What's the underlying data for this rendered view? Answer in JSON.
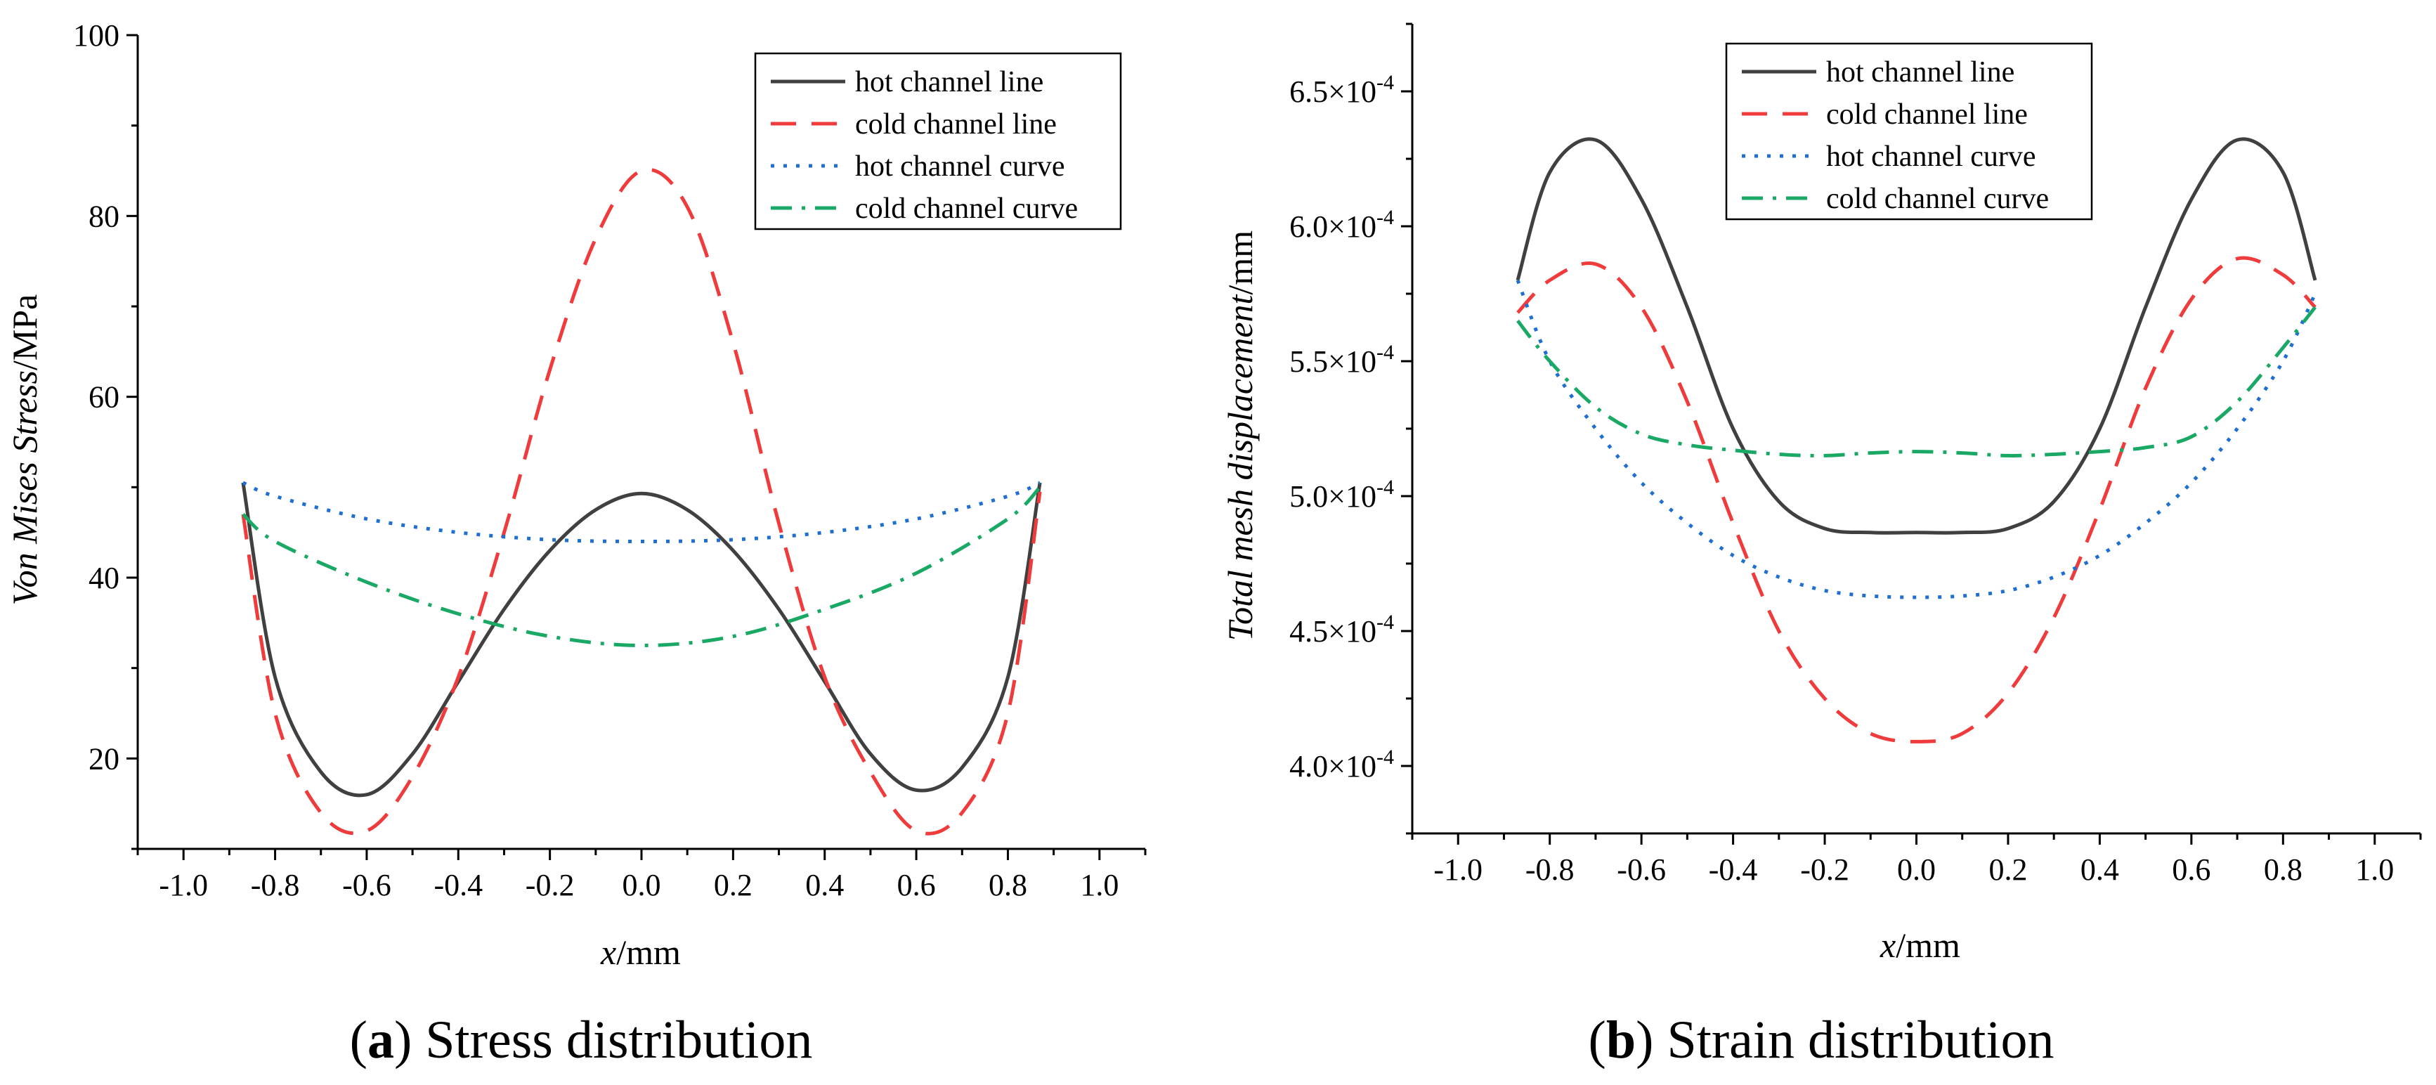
{
  "chart_data": [
    {
      "type": "line",
      "panel": "a",
      "caption_letter": "a",
      "caption_text": " Stress distribution",
      "ylabel_italic": "Von Mises Stress",
      "ylabel_unit": "/MPa",
      "xlabel_italic": "x",
      "xlabel_unit": "/mm",
      "xlim": [
        -1.1,
        1.1
      ],
      "ylim": [
        10,
        100
      ],
      "xticks": [
        -1.0,
        -0.8,
        -0.6,
        -0.4,
        -0.2,
        0.0,
        0.2,
        0.4,
        0.6,
        0.8,
        1.0
      ],
      "xtick_labels": [
        "-1.0",
        "-0.8",
        "-0.6",
        "-0.4",
        "-0.2",
        "0.0",
        "0.2",
        "0.4",
        "0.6",
        "0.8",
        "1.0"
      ],
      "yticks": [
        20,
        40,
        60,
        80,
        100
      ],
      "ytick_labels": [
        "20",
        "40",
        "60",
        "80",
        "100"
      ],
      "legend_position": "top-right",
      "series": [
        {
          "name": "hot channel line",
          "color": "#404040",
          "dash": "solid",
          "x": [
            -0.87,
            -0.8,
            -0.7,
            -0.6,
            -0.5,
            -0.4,
            -0.3,
            -0.2,
            -0.1,
            0.0,
            0.1,
            0.2,
            0.3,
            0.4,
            0.5,
            0.6,
            0.7,
            0.8,
            0.87
          ],
          "y": [
            50.5,
            29.0,
            18.5,
            16.0,
            20.5,
            28.5,
            36.5,
            43.0,
            47.5,
            49.3,
            47.5,
            43.0,
            36.5,
            28.5,
            20.5,
            16.5,
            19.0,
            29.0,
            50.5
          ]
        },
        {
          "name": "cold channel line",
          "color": "#ef3b3b",
          "dash": "long-dash",
          "x": [
            -0.87,
            -0.8,
            -0.7,
            -0.6,
            -0.5,
            -0.4,
            -0.3,
            -0.2,
            -0.1,
            0.0,
            0.1,
            0.2,
            0.3,
            0.4,
            0.5,
            0.6,
            0.7,
            0.8,
            0.87
          ],
          "y": [
            47.0,
            25.0,
            14.0,
            12.0,
            18.0,
            29.0,
            45.0,
            63.0,
            77.5,
            85.0,
            81.0,
            66.0,
            46.0,
            29.0,
            18.5,
            12.0,
            14.0,
            25.0,
            49.5
          ]
        },
        {
          "name": "hot channel curve",
          "color": "#1f6fd1",
          "dash": "dotted",
          "x": [
            -0.87,
            -0.8,
            -0.6,
            -0.4,
            -0.2,
            0.0,
            0.2,
            0.4,
            0.6,
            0.8,
            0.87
          ],
          "y": [
            50.5,
            49.0,
            46.5,
            45.0,
            44.2,
            44.0,
            44.2,
            45.0,
            46.5,
            49.0,
            50.5
          ]
        },
        {
          "name": "cold channel curve",
          "color": "#1aa865",
          "dash": "dash-dot",
          "x": [
            -0.87,
            -0.8,
            -0.6,
            -0.4,
            -0.2,
            0.0,
            0.2,
            0.4,
            0.6,
            0.8,
            0.87
          ],
          "y": [
            47.0,
            44.0,
            39.5,
            36.0,
            33.5,
            32.5,
            33.5,
            36.5,
            40.5,
            46.5,
            50.0
          ]
        }
      ]
    },
    {
      "type": "line",
      "panel": "b",
      "caption_letter": "b",
      "caption_text": " Strain distribution",
      "ylabel_italic": "Total mesh displacement",
      "ylabel_unit": "/mm",
      "xlabel_italic": "x",
      "xlabel_unit": "/mm",
      "xlim": [
        -1.1,
        1.1
      ],
      "ylim": [
        0.000375,
        0.000675
      ],
      "xticks": [
        -1.0,
        -0.8,
        -0.6,
        -0.4,
        -0.2,
        0.0,
        0.2,
        0.4,
        0.6,
        0.8,
        1.0
      ],
      "xtick_labels": [
        "-1.0",
        "-0.8",
        "-0.6",
        "-0.4",
        "-0.2",
        "0.0",
        "0.2",
        "0.4",
        "0.6",
        "0.8",
        "1.0"
      ],
      "yticks": [
        0.0004,
        0.00045,
        0.0005,
        0.00055,
        0.0006,
        0.00065
      ],
      "ytick_labels": [
        [
          "4.0×10",
          "-4"
        ],
        [
          "4.5×10",
          "-4"
        ],
        [
          "5.0×10",
          "-4"
        ],
        [
          "5.5×10",
          "-4"
        ],
        [
          "6.0×10",
          "-4"
        ],
        [
          "6.5×10",
          "-4"
        ]
      ],
      "legend_position": "top-left",
      "series": [
        {
          "name": "hot channel line",
          "color": "#404040",
          "dash": "solid",
          "x": [
            -0.87,
            -0.8,
            -0.7,
            -0.6,
            -0.5,
            -0.4,
            -0.3,
            -0.2,
            -0.1,
            0.0,
            0.1,
            0.2,
            0.3,
            0.4,
            0.5,
            0.6,
            0.7,
            0.8,
            0.87
          ],
          "y": [
            0.00058,
            0.00062,
            0.000632,
            0.00061,
            0.00057,
            0.000525,
            0.000498,
            0.000488,
            0.0004865,
            0.0004865,
            0.0004865,
            0.000488,
            0.000498,
            0.000525,
            0.00057,
            0.00061,
            0.000632,
            0.00062,
            0.00058
          ]
        },
        {
          "name": "cold channel line",
          "color": "#ef3b3b",
          "dash": "long-dash",
          "x": [
            -0.87,
            -0.8,
            -0.7,
            -0.6,
            -0.5,
            -0.4,
            -0.3,
            -0.2,
            -0.1,
            0.0,
            0.1,
            0.2,
            0.3,
            0.4,
            0.5,
            0.6,
            0.7,
            0.8,
            0.87
          ],
          "y": [
            0.000568,
            0.00058,
            0.000586,
            0.00057,
            0.000535,
            0.00049,
            0.00045,
            0.000425,
            0.000412,
            0.000409,
            0.000412,
            0.000427,
            0.000455,
            0.000495,
            0.00054,
            0.000573,
            0.000588,
            0.000582,
            0.00057
          ]
        },
        {
          "name": "hot channel curve",
          "color": "#1f6fd1",
          "dash": "dotted",
          "x": [
            -0.87,
            -0.8,
            -0.7,
            -0.6,
            -0.5,
            -0.4,
            -0.3,
            -0.2,
            -0.1,
            0.0,
            0.1,
            0.2,
            0.3,
            0.4,
            0.5,
            0.6,
            0.7,
            0.8,
            0.87
          ],
          "y": [
            0.00058,
            0.00055,
            0.000525,
            0.000505,
            0.00049,
            0.000478,
            0.00047,
            0.000465,
            0.000463,
            0.0004625,
            0.000463,
            0.000465,
            0.00047,
            0.000478,
            0.00049,
            0.000505,
            0.000525,
            0.00055,
            0.000575
          ]
        },
        {
          "name": "cold channel curve",
          "color": "#1aa865",
          "dash": "dash-dot",
          "x": [
            -0.87,
            -0.8,
            -0.7,
            -0.6,
            -0.5,
            -0.4,
            -0.3,
            -0.2,
            -0.1,
            0.0,
            0.1,
            0.2,
            0.3,
            0.4,
            0.5,
            0.6,
            0.7,
            0.8,
            0.87
          ],
          "y": [
            0.000565,
            0.00055,
            0.000533,
            0.000523,
            0.000519,
            0.000517,
            0.0005155,
            0.000515,
            0.000516,
            0.0005165,
            0.000516,
            0.000515,
            0.0005155,
            0.0005165,
            0.000518,
            0.000522,
            0.000535,
            0.000555,
            0.00057
          ]
        }
      ]
    }
  ]
}
